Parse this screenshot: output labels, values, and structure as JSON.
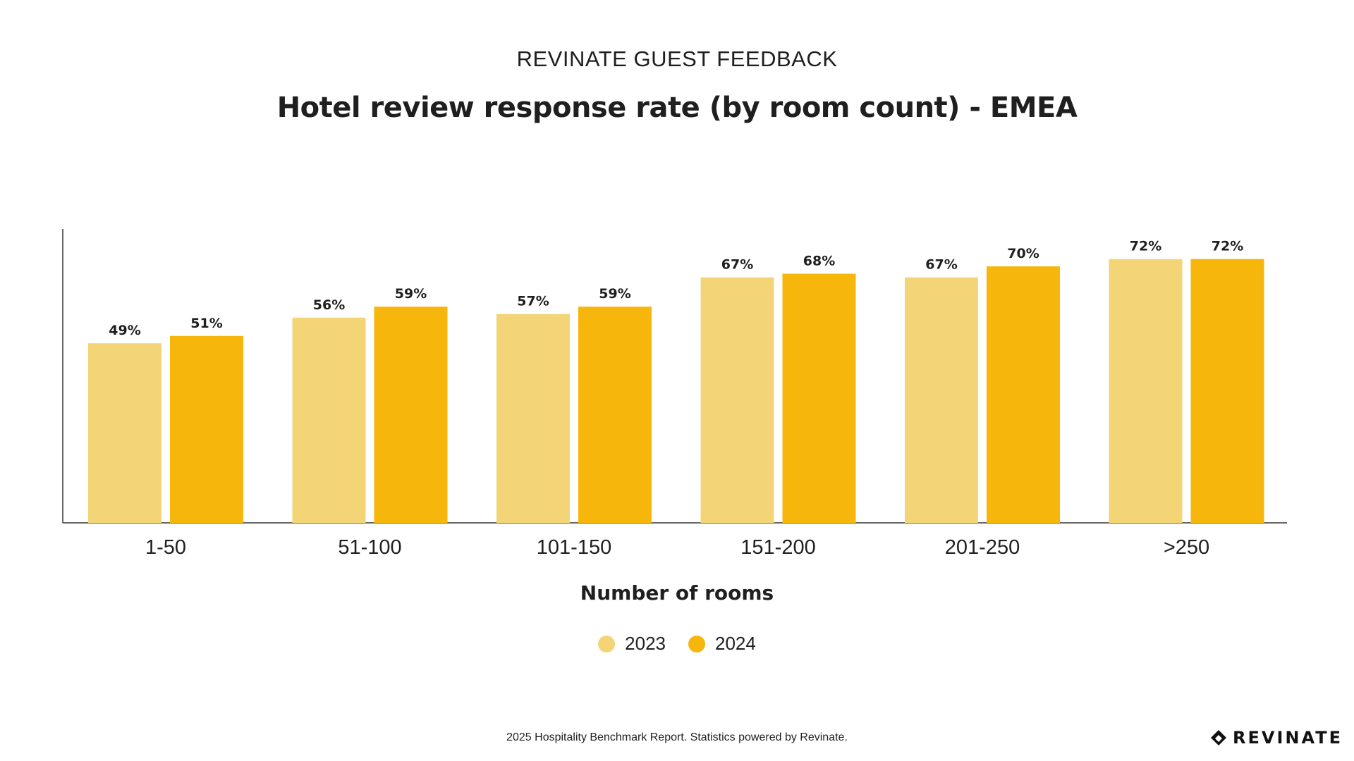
{
  "header": {
    "supertitle": "REVINATE GUEST FEEDBACK"
  },
  "footer": {
    "note": "2025 Hospitality Benchmark Report. Statistics powered by Revinate.",
    "brand": "REVINATE",
    "logo_icon": "revinate-logo-icon"
  },
  "colors": {
    "series_2023": "#F3D577",
    "series_2024": "#F6B60B",
    "axis": "#666666",
    "text": "#1f1f1f"
  },
  "chart_data": {
    "type": "bar",
    "title": "Hotel review response rate (by room count) - EMEA",
    "xlabel": "Number of rooms",
    "ylabel": "",
    "ylim": [
      0,
      100
    ],
    "grid": false,
    "legend_position": "bottom-center",
    "categories": [
      "1-50",
      "51-100",
      "101-150",
      "151-200",
      "201-250",
      ">250"
    ],
    "series": [
      {
        "name": "2023",
        "values": [
          49,
          56,
          57,
          67,
          67,
          72
        ],
        "labels": [
          "49%",
          "56%",
          "57%",
          "67%",
          "67%",
          "72%"
        ]
      },
      {
        "name": "2024",
        "values": [
          51,
          59,
          59,
          68,
          70,
          72
        ],
        "labels": [
          "51%",
          "59%",
          "59%",
          "68%",
          "70%",
          "72%"
        ]
      }
    ]
  }
}
